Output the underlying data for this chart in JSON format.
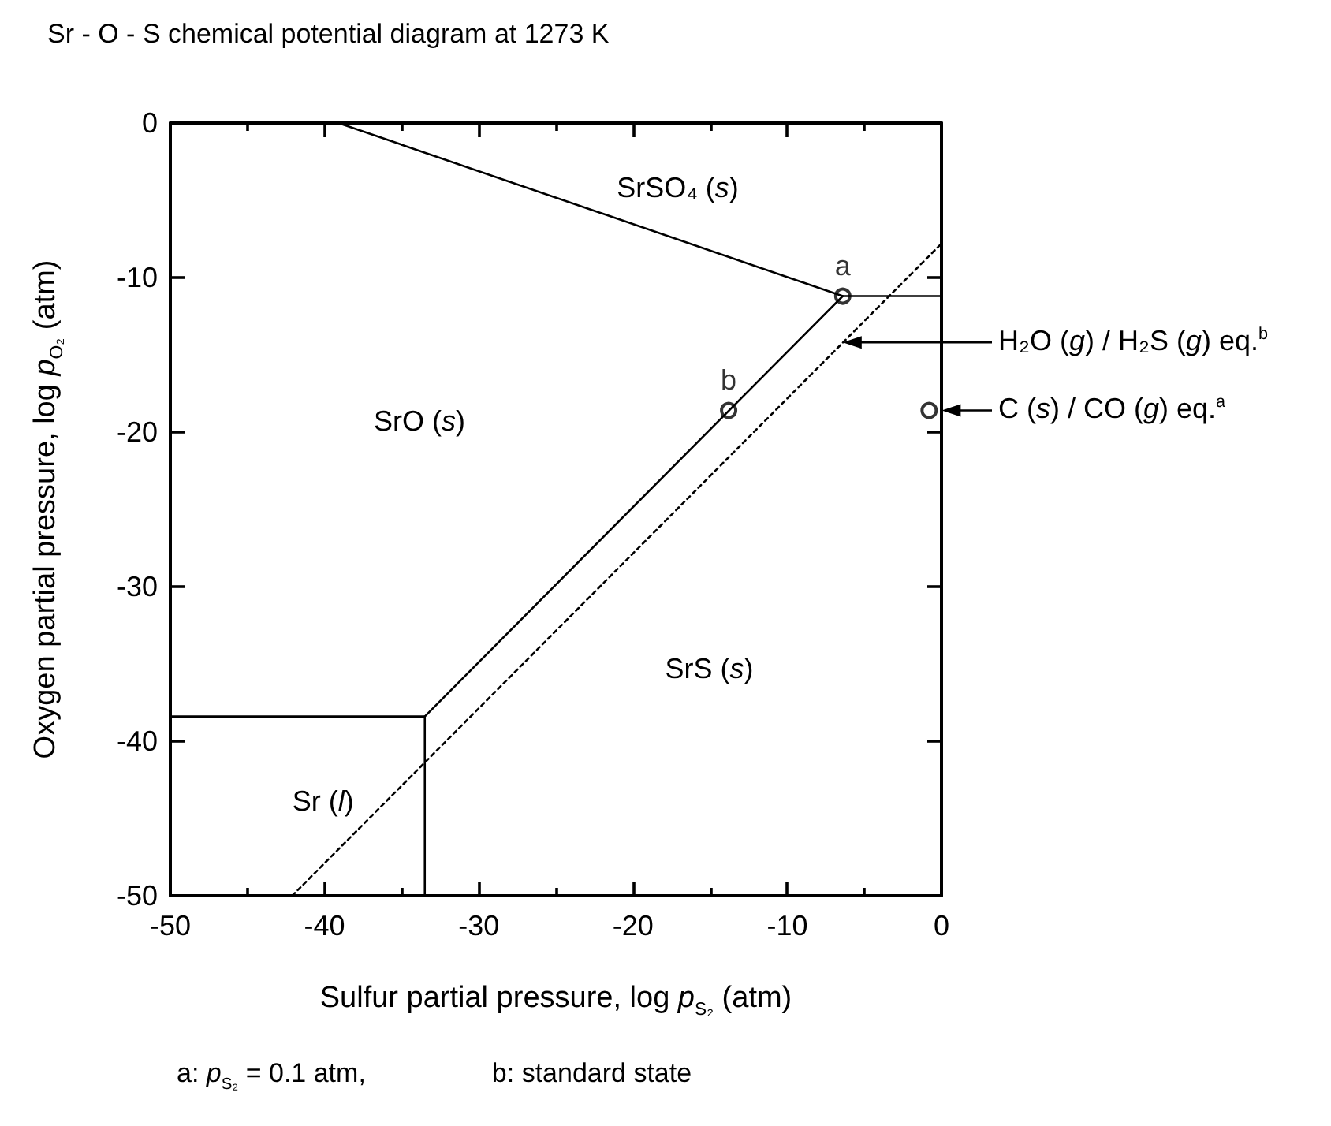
{
  "chart_data": {
    "type": "line",
    "title": "Sr - O - S chemical potential diagram at 1273 K",
    "xlabel": "Sulfur partial pressure, log p$_{S₂}$ (atm)",
    "ylabel": "Oxygen partial pressure, log p$_{O₂}$ (atm)",
    "xlim": [
      -50,
      0
    ],
    "xticks": [
      -50,
      {
        "value": -45,
        "label": null
      },
      -40,
      {
        "value": -35,
        "label": null
      },
      -30,
      {
        "value": -25,
        "label": null
      },
      -20,
      {
        "value": -15,
        "label": null
      },
      -10,
      {
        "value": -5,
        "label": null
      },
      0
    ],
    "ylim": [
      -50,
      0
    ],
    "yticks": [
      -50,
      -40,
      -30,
      -20,
      -10,
      0
    ],
    "grid": false,
    "legend": false,
    "marker": "none",
    "line_style": "solid",
    "series": [
      {
        "color": "#000000",
        "x": [
          -39.1,
          -6.4,
          0
        ],
        "values": [
          0,
          -11.2,
          -11.2
        ]
      },
      {
        "color": "#000000",
        "x": [
          -6.4,
          -33.5,
          -50
        ],
        "values": [
          -11.2,
          -38.4,
          -38.4
        ]
      },
      {
        "color": "#000000",
        "x": [
          -33.5,
          -33.5
        ],
        "values": [
          -38.4,
          -50
        ]
      },
      {
        "color": "#000000",
        "line_style": "dotted",
        "x": [
          -42.1,
          0
        ],
        "values": [
          -50,
          -7.8
        ]
      },
      {
        "type": "scatter",
        "name": "a",
        "color": "#000000",
        "marker": "circle",
        "x": [
          -6.4
        ],
        "values": [
          -11.2
        ]
      },
      {
        "type": "scatter",
        "name": "b",
        "color": "#000000",
        "marker": "circle",
        "x": [
          -13.8
        ],
        "values": [
          -18.6
        ]
      },
      {
        "type": "scatter",
        "color": "#000000",
        "marker": "circle",
        "x": [
          -0.8
        ],
        "values": [
          -18.6
        ]
      }
    ],
    "annotations": [
      "SrSO₄ (s)",
      "SrO (s)",
      "SrS (s)",
      "Sr (l)",
      "H₂O (g) / H₂S (g) eq.$^{b}$",
      {
        "text": "C (s) / CO (g) eq.$^{a}$",
        "x": -0.8,
        "y": -18.6
      },
      "a: p$_{S₂}$ = 0.1 atm,",
      "b: standard state"
    ]
  }
}
